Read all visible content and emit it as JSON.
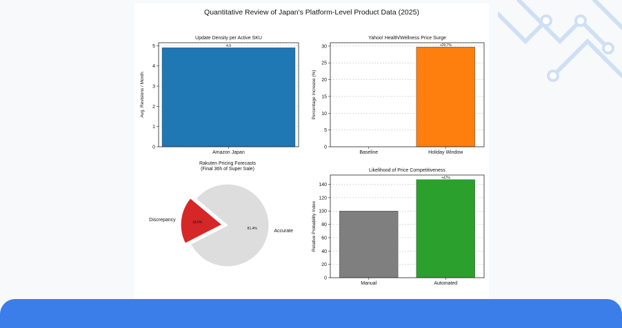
{
  "figure": {
    "title": "Quantitative Review of Japan's Platform-Level Product Data (2025)"
  },
  "chart_data": [
    {
      "type": "bar",
      "title": "Update Density per Active SKU",
      "xlabel": "",
      "ylabel": "Avg. Revisions / Month",
      "categories": [
        "Amazon Japan"
      ],
      "values": [
        4.9
      ],
      "data_labels": [
        "4.9"
      ],
      "colors": [
        "#1f77b4"
      ],
      "ylim": [
        0,
        5.15
      ],
      "yticks": [
        0,
        1,
        2,
        3,
        4,
        5
      ],
      "grid": true
    },
    {
      "type": "bar",
      "title": "Yahoo! Health/Wellness Price Surge",
      "xlabel": "",
      "ylabel": "Percentage Increase (%)",
      "categories": [
        "Baseline",
        "Holiday Window"
      ],
      "values": [
        0,
        29.7
      ],
      "data_labels": [
        "",
        "+29.7%"
      ],
      "colors": [
        "#1f77b4",
        "#ff7f0e"
      ],
      "ylim": [
        0,
        31
      ],
      "yticks": [
        0,
        5,
        10,
        15,
        20,
        25,
        30
      ],
      "grid": true
    },
    {
      "type": "pie",
      "title": "Rakuten Pricing Forecasts",
      "subtitle": "(Final 36h of Super Sale)",
      "labels": [
        "Discrepancy",
        "Accurate"
      ],
      "values": [
        18.6,
        81.4
      ],
      "pct_labels": [
        "18.6%",
        "81.4%"
      ],
      "colors": [
        "#d62728",
        "#dddddd"
      ],
      "exploded": "Discrepancy"
    },
    {
      "type": "bar",
      "title": "Likelihood of Price Competitiveness",
      "xlabel": "",
      "ylabel": "Relative Probability Index",
      "categories": [
        "Manual",
        "Automated"
      ],
      "values": [
        100,
        147
      ],
      "data_labels": [
        "",
        "+47%"
      ],
      "colors": [
        "#7f7f7f",
        "#2ca02c"
      ],
      "ylim": [
        0,
        154
      ],
      "yticks": [
        0,
        20,
        40,
        60,
        80,
        100,
        120,
        140
      ],
      "grid": true
    }
  ]
}
